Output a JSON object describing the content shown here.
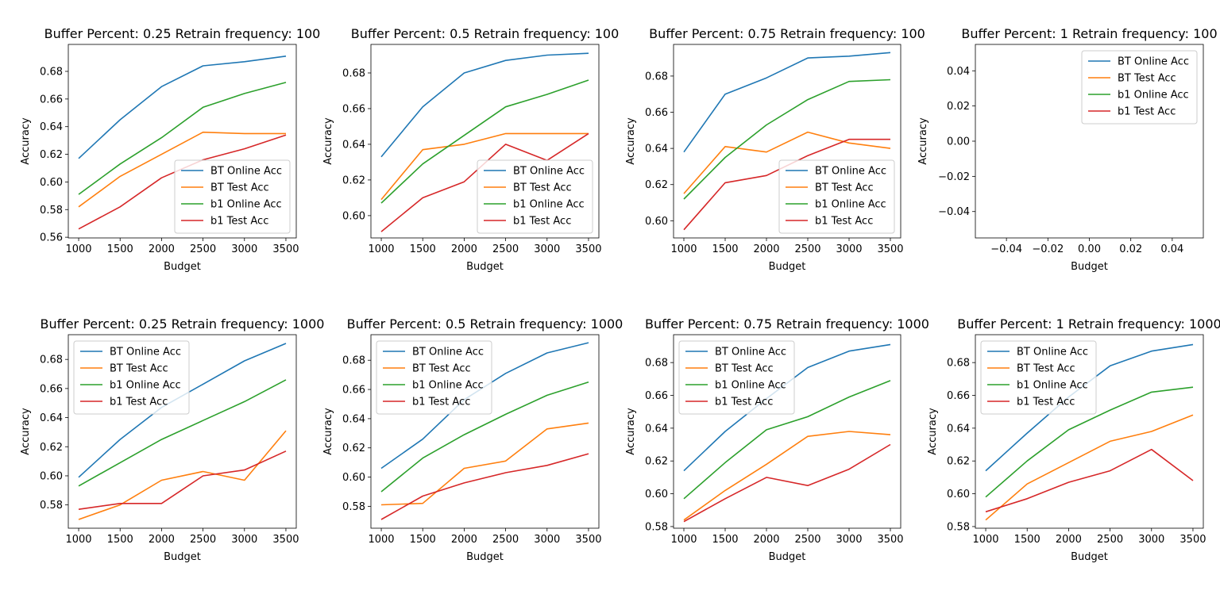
{
  "figure": {
    "colors": [
      "#1f77b4",
      "#ff7f0e",
      "#2ca02c",
      "#d62728"
    ]
  },
  "chart_data": [
    {
      "type": "line",
      "title": "Buffer Percent: 0.25 Retrain frequency: 100",
      "xlabel": "Budget",
      "ylabel": "Accuracy",
      "x": [
        1000,
        1500,
        2000,
        2500,
        3000,
        3500
      ],
      "xticks": [
        "1000",
        "1500",
        "2000",
        "2500",
        "3000",
        "3500"
      ],
      "yticks": [
        "0.56",
        "0.58",
        "0.60",
        "0.62",
        "0.64",
        "0.66",
        "0.68"
      ],
      "legend_position": "lower right",
      "series": [
        {
          "name": "BT Online Acc",
          "values": [
            0.617,
            0.645,
            0.669,
            0.684,
            0.687,
            0.691
          ]
        },
        {
          "name": "BT Test Acc",
          "values": [
            0.582,
            0.604,
            0.62,
            0.636,
            0.635,
            0.635
          ]
        },
        {
          "name": "b1 Online Acc",
          "values": [
            0.591,
            0.613,
            0.632,
            0.654,
            0.664,
            0.672
          ]
        },
        {
          "name": "b1 Test Acc",
          "values": [
            0.566,
            0.582,
            0.603,
            0.616,
            0.624,
            0.634
          ]
        }
      ]
    },
    {
      "type": "line",
      "title": "Buffer Percent: 0.5 Retrain frequency: 100",
      "xlabel": "Budget",
      "ylabel": "Accuracy",
      "x": [
        1000,
        1500,
        2000,
        2500,
        3000,
        3500
      ],
      "xticks": [
        "1000",
        "1500",
        "2000",
        "2500",
        "3000",
        "3500"
      ],
      "yticks": [
        "0.60",
        "0.62",
        "0.64",
        "0.66",
        "0.68"
      ],
      "legend_position": "lower right",
      "series": [
        {
          "name": "BT Online Acc",
          "values": [
            0.633,
            0.661,
            0.68,
            0.687,
            0.69,
            0.691
          ]
        },
        {
          "name": "BT Test Acc",
          "values": [
            0.609,
            0.637,
            0.64,
            0.646,
            0.646,
            0.646
          ]
        },
        {
          "name": "b1 Online Acc",
          "values": [
            0.607,
            0.629,
            0.645,
            0.661,
            0.668,
            0.676
          ]
        },
        {
          "name": "b1 Test Acc",
          "values": [
            0.591,
            0.61,
            0.619,
            0.64,
            0.631,
            0.646
          ]
        }
      ]
    },
    {
      "type": "line",
      "title": "Buffer Percent: 0.75 Retrain frequency: 100",
      "xlabel": "Budget",
      "ylabel": "Accuracy",
      "x": [
        1000,
        1500,
        2000,
        2500,
        3000,
        3500
      ],
      "xticks": [
        "1000",
        "1500",
        "2000",
        "2500",
        "3000",
        "3500"
      ],
      "yticks": [
        "0.60",
        "0.62",
        "0.64",
        "0.66",
        "0.68"
      ],
      "legend_position": "lower right",
      "series": [
        {
          "name": "BT Online Acc",
          "values": [
            0.638,
            0.67,
            0.679,
            0.69,
            0.691,
            0.693
          ]
        },
        {
          "name": "BT Test Acc",
          "values": [
            0.615,
            0.641,
            0.638,
            0.649,
            0.643,
            0.64
          ]
        },
        {
          "name": "b1 Online Acc",
          "values": [
            0.612,
            0.635,
            0.653,
            0.667,
            0.677,
            0.678
          ]
        },
        {
          "name": "b1 Test Acc",
          "values": [
            0.595,
            0.621,
            0.625,
            0.636,
            0.645,
            0.645
          ]
        }
      ]
    },
    {
      "type": "line",
      "title": "Buffer Percent: 1 Retrain frequency: 100",
      "xlabel": "Budget",
      "ylabel": "Accuracy",
      "x": [],
      "xticks": [
        "−0.04",
        "−0.02",
        "0.00",
        "0.02",
        "0.04"
      ],
      "yticks": [
        "−0.04",
        "−0.02",
        "0.00",
        "0.02",
        "0.04"
      ],
      "legend_position": "upper right",
      "series": [
        {
          "name": "BT Online Acc",
          "values": []
        },
        {
          "name": "BT Test Acc",
          "values": []
        },
        {
          "name": "b1 Online Acc",
          "values": []
        },
        {
          "name": "b1 Test Acc",
          "values": []
        }
      ]
    },
    {
      "type": "line",
      "title": "Buffer Percent: 0.25 Retrain frequency: 1000",
      "xlabel": "Budget",
      "ylabel": "Accuracy",
      "x": [
        1000,
        1500,
        2000,
        2500,
        3000,
        3500
      ],
      "xticks": [
        "1000",
        "1500",
        "2000",
        "2500",
        "3000",
        "3500"
      ],
      "yticks": [
        "0.58",
        "0.60",
        "0.62",
        "0.64",
        "0.66",
        "0.68"
      ],
      "legend_position": "upper left",
      "series": [
        {
          "name": "BT Online Acc",
          "values": [
            0.599,
            0.625,
            0.647,
            0.663,
            0.679,
            0.691
          ]
        },
        {
          "name": "BT Test Acc",
          "values": [
            0.57,
            0.58,
            0.597,
            0.603,
            0.597,
            0.631
          ]
        },
        {
          "name": "b1 Online Acc",
          "values": [
            0.593,
            0.609,
            0.625,
            0.638,
            0.651,
            0.666
          ]
        },
        {
          "name": "b1 Test Acc",
          "values": [
            0.577,
            0.581,
            0.581,
            0.6,
            0.604,
            0.617
          ]
        }
      ]
    },
    {
      "type": "line",
      "title": "Buffer Percent: 0.5 Retrain frequency: 1000",
      "xlabel": "Budget",
      "ylabel": "Accuracy",
      "x": [
        1000,
        1500,
        2000,
        2500,
        3000,
        3500
      ],
      "xticks": [
        "1000",
        "1500",
        "2000",
        "2500",
        "3000",
        "3500"
      ],
      "yticks": [
        "0.58",
        "0.60",
        "0.62",
        "0.64",
        "0.66",
        "0.68"
      ],
      "legend_position": "upper left",
      "series": [
        {
          "name": "BT Online Acc",
          "values": [
            0.606,
            0.626,
            0.653,
            0.671,
            0.685,
            0.692
          ]
        },
        {
          "name": "BT Test Acc",
          "values": [
            0.581,
            0.582,
            0.606,
            0.611,
            0.633,
            0.637
          ]
        },
        {
          "name": "b1 Online Acc",
          "values": [
            0.59,
            0.613,
            0.629,
            0.643,
            0.656,
            0.665
          ]
        },
        {
          "name": "b1 Test Acc",
          "values": [
            0.571,
            0.587,
            0.596,
            0.603,
            0.608,
            0.616
          ]
        }
      ]
    },
    {
      "type": "line",
      "title": "Buffer Percent: 0.75 Retrain frequency: 1000",
      "xlabel": "Budget",
      "ylabel": "Accuracy",
      "x": [
        1000,
        1500,
        2000,
        2500,
        3000,
        3500
      ],
      "xticks": [
        "1000",
        "1500",
        "2000",
        "2500",
        "3000",
        "3500"
      ],
      "yticks": [
        "0.58",
        "0.60",
        "0.62",
        "0.64",
        "0.66",
        "0.68"
      ],
      "legend_position": "upper left",
      "series": [
        {
          "name": "BT Online Acc",
          "values": [
            0.614,
            0.638,
            0.658,
            0.677,
            0.687,
            0.691
          ]
        },
        {
          "name": "BT Test Acc",
          "values": [
            0.584,
            0.602,
            0.618,
            0.635,
            0.638,
            0.636
          ]
        },
        {
          "name": "b1 Online Acc",
          "values": [
            0.597,
            0.619,
            0.639,
            0.647,
            0.659,
            0.669
          ]
        },
        {
          "name": "b1 Test Acc",
          "values": [
            0.583,
            0.597,
            0.61,
            0.605,
            0.615,
            0.63
          ]
        }
      ]
    },
    {
      "type": "line",
      "title": "Buffer Percent: 1 Retrain frequency: 1000",
      "xlabel": "Budget",
      "ylabel": "Accuracy",
      "x": [
        1000,
        1500,
        2000,
        2500,
        3000,
        3500
      ],
      "xticks": [
        "1000",
        "1500",
        "2000",
        "2500",
        "3000",
        "3500"
      ],
      "yticks": [
        "0.58",
        "0.60",
        "0.62",
        "0.64",
        "0.66",
        "0.68"
      ],
      "legend_position": "upper left",
      "series": [
        {
          "name": "BT Online Acc",
          "values": [
            0.614,
            0.637,
            0.659,
            0.678,
            0.687,
            0.691
          ]
        },
        {
          "name": "BT Test Acc",
          "values": [
            0.584,
            0.606,
            0.619,
            0.632,
            0.638,
            0.648
          ]
        },
        {
          "name": "b1 Online Acc",
          "values": [
            0.598,
            0.62,
            0.639,
            0.651,
            0.662,
            0.665
          ]
        },
        {
          "name": "b1 Test Acc",
          "values": [
            0.589,
            0.597,
            0.607,
            0.614,
            0.627,
            0.608
          ]
        }
      ]
    }
  ]
}
